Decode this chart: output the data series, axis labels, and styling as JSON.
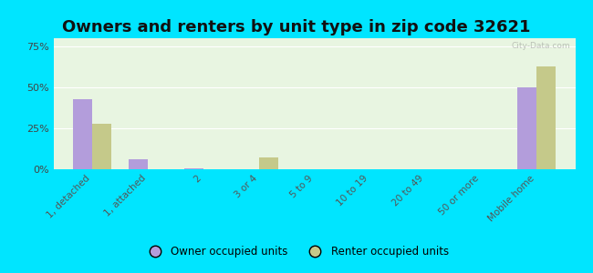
{
  "title": "Owners and renters by unit type in zip code 32621",
  "categories": [
    "1, detached",
    "1, attached",
    "2",
    "3 or 4",
    "5 to 9",
    "10 to 19",
    "20 to 49",
    "50 or more",
    "Mobile home"
  ],
  "owner_values": [
    43,
    6,
    0.5,
    0,
    0,
    0,
    0,
    0,
    50
  ],
  "renter_values": [
    28,
    0,
    0,
    7,
    0,
    0,
    0,
    0,
    63
  ],
  "owner_color": "#b39ddb",
  "renter_color": "#c5c98a",
  "background_color": "#e8f5e1",
  "outer_background": "#00e5ff",
  "ylim": [
    0,
    80
  ],
  "yticks": [
    0,
    25,
    50,
    75
  ],
  "ytick_labels": [
    "0%",
    "25%",
    "50%",
    "75%"
  ],
  "title_fontsize": 13,
  "legend_owner_label": "Owner occupied units",
  "legend_renter_label": "Renter occupied units",
  "bar_width": 0.35
}
